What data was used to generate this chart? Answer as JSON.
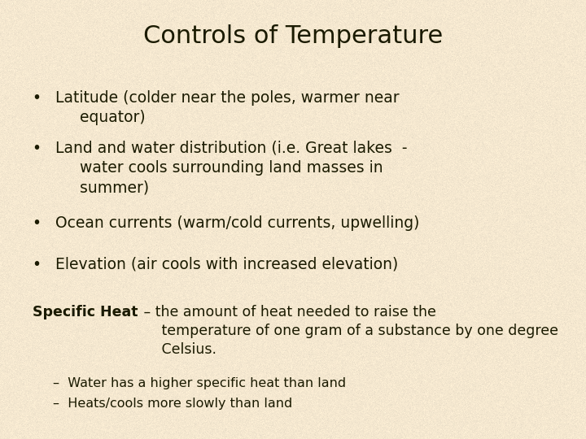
{
  "title": "Controls of Temperature",
  "title_fontsize": 22,
  "background_color": "#f5e8d0",
  "text_color": "#1a1a00",
  "bullet_points": [
    "Latitude (colder near the poles, warmer near\n     equator)",
    "Land and water distribution (i.e. Great lakes  -\n     water cools surrounding land masses in\n     summer)",
    "Ocean currents (warm/cold currents, upwelling)",
    "Elevation (air cools with increased elevation)"
  ],
  "bullet_fontsize": 13.5,
  "specific_heat_bold": "Specific Heat",
  "specific_heat_rest": " – the amount of heat needed to raise the\n     temperature of one gram of a substance by one degree\n     Celsius.",
  "specific_heat_fontsize": 12.5,
  "sub_bullets": [
    "–  Water has a higher specific heat than land",
    "–  Heats/cools more slowly than land"
  ],
  "sub_bullet_fontsize": 11.5
}
